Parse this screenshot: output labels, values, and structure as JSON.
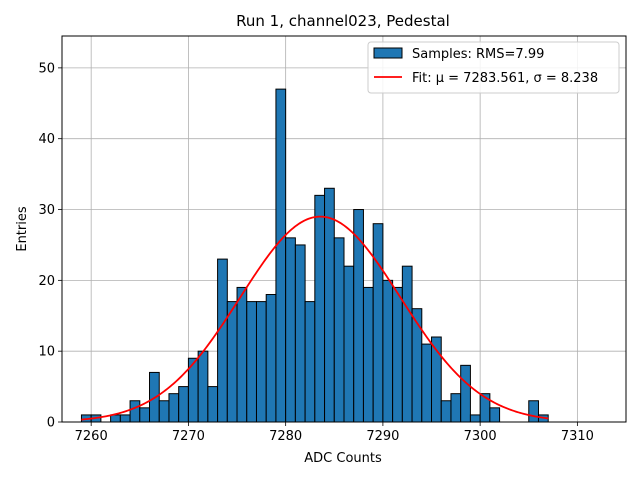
{
  "chart_data": {
    "type": "bar",
    "title": "Run 1, channel023, Pedestal",
    "xlabel": "ADC Counts",
    "ylabel": "Entries",
    "xlim": [
      7257,
      7315
    ],
    "ylim": [
      0,
      54.5
    ],
    "xticks": [
      7260,
      7270,
      7280,
      7290,
      7300,
      7310
    ],
    "yticks": [
      0,
      10,
      20,
      30,
      40,
      50
    ],
    "grid": true,
    "legend_position": "top-right",
    "bin_width": 1,
    "series": [
      {
        "name": "Samples: RMS=7.99",
        "kind": "histogram",
        "color": "#1f77b4",
        "edgecolor": "#000000",
        "bin_starts": [
          7259,
          7260,
          7261,
          7262,
          7263,
          7264,
          7265,
          7266,
          7267,
          7268,
          7269,
          7270,
          7271,
          7272,
          7273,
          7274,
          7275,
          7276,
          7277,
          7278,
          7279,
          7280,
          7281,
          7282,
          7283,
          7284,
          7285,
          7286,
          7287,
          7288,
          7289,
          7290,
          7291,
          7292,
          7293,
          7294,
          7295,
          7296,
          7297,
          7298,
          7299,
          7300,
          7301,
          7302,
          7303,
          7304,
          7305,
          7306
        ],
        "values": [
          1,
          1,
          0,
          1,
          1,
          3,
          2,
          7,
          3,
          4,
          5,
          9,
          10,
          5,
          23,
          17,
          19,
          17,
          17,
          18,
          47,
          26,
          25,
          17,
          32,
          33,
          26,
          22,
          30,
          19,
          28,
          20,
          19,
          22,
          16,
          11,
          12,
          3,
          4,
          8,
          1,
          4,
          2,
          0,
          0,
          0,
          3,
          1
        ]
      },
      {
        "name": "Fit: μ = 7283.561, σ = 8.238",
        "kind": "gaussian",
        "color": "#ff0000",
        "mu": 7283.561,
        "sigma": 8.238,
        "amplitude": 29.0,
        "x_range": [
          7259,
          7307
        ]
      }
    ]
  }
}
